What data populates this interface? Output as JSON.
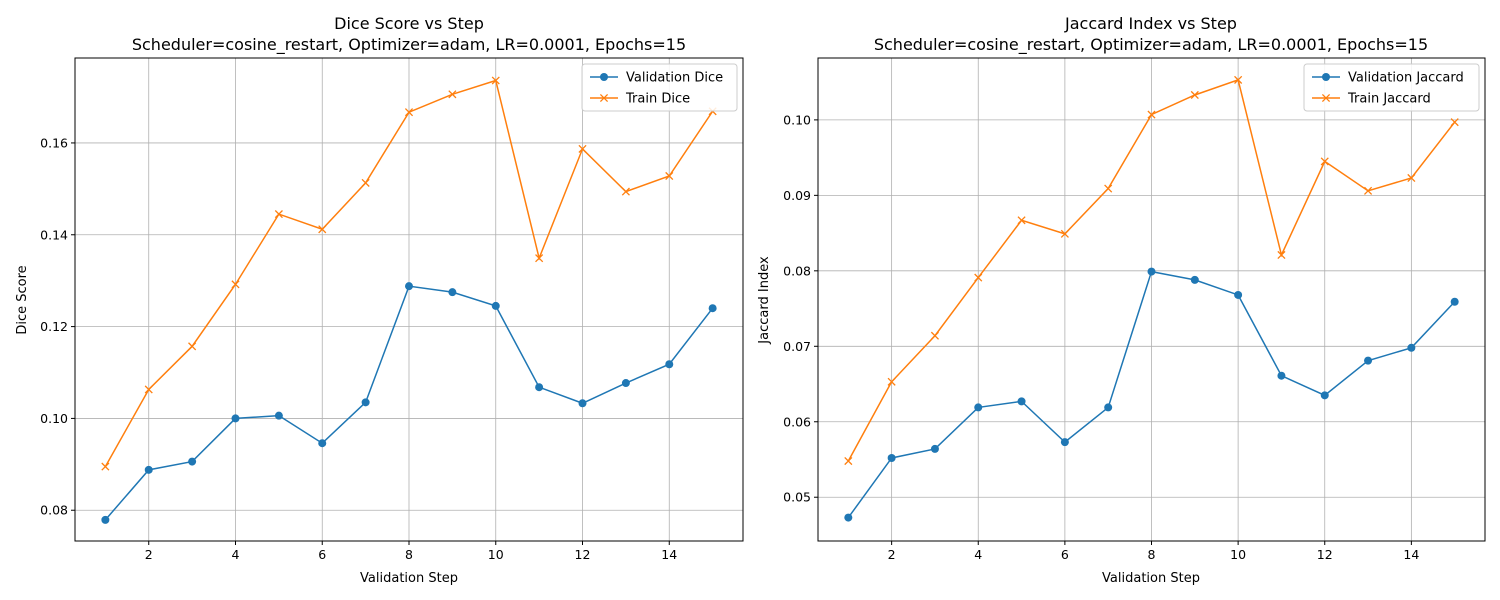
{
  "colors": {
    "validation": "#1f77b4",
    "train": "#ff7f0e",
    "grid": "#b0b0b0",
    "axis": "#000000",
    "legend_border": "#cccccc"
  },
  "chart_data": [
    {
      "type": "line",
      "title": "Dice Score vs Step",
      "subtitle": "Scheduler=cosine_restart, Optimizer=adam, LR=0.0001, Epochs=15",
      "xlabel": "Validation Step",
      "ylabel": "Dice Score",
      "xlim": [
        0.3,
        15.7
      ],
      "ylim": [
        0.0733,
        0.1785
      ],
      "xticks": [
        2,
        4,
        6,
        8,
        10,
        12,
        14
      ],
      "yticks": [
        0.08,
        0.1,
        0.12,
        0.14,
        0.16
      ],
      "ytick_labels": [
        "0.08",
        "0.10",
        "0.12",
        "0.14",
        "0.16"
      ],
      "grid": true,
      "legend_position": "top-right",
      "x": [
        1,
        2,
        3,
        4,
        5,
        6,
        7,
        8,
        9,
        10,
        11,
        12,
        13,
        14,
        15
      ],
      "series": [
        {
          "name": "Validation Dice",
          "marker": "circle",
          "color": "#1f77b4",
          "values": [
            0.0779,
            0.0888,
            0.0906,
            0.1,
            0.1006,
            0.0946,
            0.1035,
            0.1288,
            0.1275,
            0.1245,
            0.1068,
            0.1033,
            0.1077,
            0.1118,
            0.124
          ]
        },
        {
          "name": "Train Dice",
          "marker": "x",
          "color": "#ff7f0e",
          "values": [
            0.0895,
            0.1063,
            0.1157,
            0.1292,
            0.1445,
            0.1412,
            0.1513,
            0.1667,
            0.1706,
            0.1736,
            0.1349,
            0.1587,
            0.1494,
            0.1528,
            0.1669
          ]
        }
      ]
    },
    {
      "type": "line",
      "title": "Jaccard Index vs Step",
      "subtitle": "Scheduler=cosine_restart, Optimizer=adam, LR=0.0001, Epochs=15",
      "xlabel": "Validation Step",
      "ylabel": "Jaccard Index",
      "xlim": [
        0.3,
        15.7
      ],
      "ylim": [
        0.0442,
        0.1082
      ],
      "xticks": [
        2,
        4,
        6,
        8,
        10,
        12,
        14
      ],
      "yticks": [
        0.05,
        0.06,
        0.07,
        0.08,
        0.09,
        0.1
      ],
      "ytick_labels": [
        "0.05",
        "0.06",
        "0.07",
        "0.08",
        "0.09",
        "0.10"
      ],
      "grid": true,
      "legend_position": "top-right",
      "x": [
        1,
        2,
        3,
        4,
        5,
        6,
        7,
        8,
        9,
        10,
        11,
        12,
        13,
        14,
        15
      ],
      "series": [
        {
          "name": "Validation Jaccard",
          "marker": "circle",
          "color": "#1f77b4",
          "values": [
            0.0473,
            0.0552,
            0.0564,
            0.0619,
            0.0627,
            0.0573,
            0.0619,
            0.0799,
            0.0788,
            0.0768,
            0.0661,
            0.0635,
            0.0681,
            0.0698,
            0.0759
          ]
        },
        {
          "name": "Train Jaccard",
          "marker": "x",
          "color": "#ff7f0e",
          "values": [
            0.0548,
            0.0653,
            0.0714,
            0.0791,
            0.0867,
            0.0849,
            0.0909,
            0.1007,
            0.1033,
            0.1053,
            0.0821,
            0.0945,
            0.0906,
            0.0923,
            0.0997
          ]
        }
      ]
    }
  ]
}
